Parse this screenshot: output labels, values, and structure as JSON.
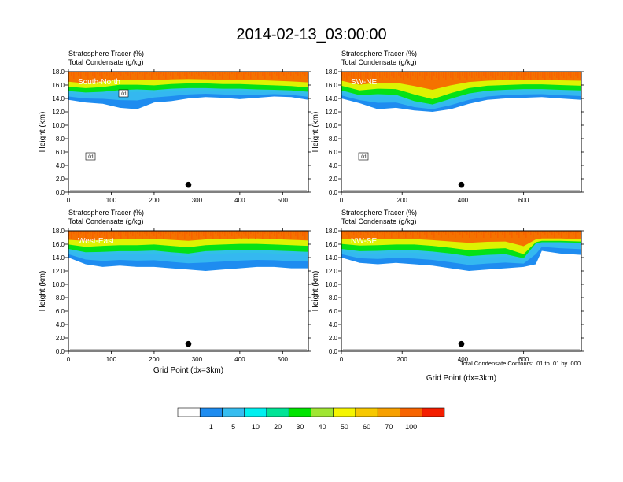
{
  "figure": {
    "title": "2014-02-13_03:00:00",
    "footnote": "Total Condensate Contours: .01 to .01 by .000"
  },
  "chart_data": [
    {
      "type": "heatmap",
      "panel": "South-North",
      "title_lines": [
        "Stratosphere Tracer   (%)",
        "Total Condensate   (g/kg)"
      ],
      "cross_section_label": "South-North",
      "ylabel": "Height (km)",
      "xlabel": "",
      "xlim": [
        0,
        560
      ],
      "ylim": [
        0,
        18
      ],
      "xticks": [
        0,
        100,
        200,
        300,
        400,
        500
      ],
      "yticks": [
        0,
        2,
        4,
        6,
        8,
        10,
        12,
        14,
        16,
        18
      ],
      "marker": {
        "x": 280,
        "y": 1.1
      },
      "contour_labels": [
        ".01",
        ".01"
      ],
      "tracer_levels": {
        "x": [
          0,
          40,
          80,
          120,
          160,
          200,
          240,
          280,
          320,
          360,
          400,
          440,
          480,
          520,
          560
        ],
        "top_of_100": [
          16.9,
          16.6,
          16.9,
          17.1,
          17.1,
          17.1,
          17.2,
          17.2,
          17.1,
          17.1,
          17.1,
          17.1,
          17.0,
          16.9,
          16.8
        ],
        "top_of_70": [
          16.1,
          15.9,
          16.1,
          16.5,
          16.4,
          16.3,
          16.5,
          16.6,
          16.6,
          16.5,
          16.5,
          16.4,
          16.3,
          16.2,
          16.0
        ],
        "top_of_40": [
          15.4,
          15.2,
          15.3,
          15.6,
          15.7,
          15.6,
          15.8,
          15.9,
          15.9,
          15.8,
          15.8,
          15.7,
          15.6,
          15.5,
          15.3
        ],
        "top_of_20": [
          14.8,
          14.6,
          14.7,
          14.9,
          15.0,
          14.9,
          15.1,
          15.2,
          15.2,
          15.1,
          15.1,
          15.0,
          15.0,
          14.9,
          14.7
        ],
        "top_of_1": [
          13.8,
          13.4,
          13.2,
          12.6,
          12.4,
          13.4,
          13.6,
          14.0,
          14.2,
          14.1,
          13.9,
          14.1,
          14.3,
          14.2,
          13.8
        ]
      }
    },
    {
      "type": "heatmap",
      "panel": "SW-NE",
      "title_lines": [
        "Stratosphere Tracer   (%)",
        "Total Condensate   (g/kg)"
      ],
      "cross_section_label": "SW-NE",
      "ylabel": "Height (km)",
      "xlabel": "",
      "xlim": [
        0,
        790
      ],
      "ylim": [
        0,
        18
      ],
      "xticks": [
        0,
        200,
        400,
        600
      ],
      "yticks": [
        0,
        2,
        4,
        6,
        8,
        10,
        12,
        14,
        16,
        18
      ],
      "marker": {
        "x": 395,
        "y": 1.1
      },
      "contour_labels": [
        ".01"
      ],
      "tracer_levels": {
        "x": [
          0,
          60,
          120,
          180,
          240,
          300,
          360,
          420,
          480,
          540,
          600,
          660,
          720,
          790
        ],
        "top_of_100": [
          17.0,
          16.5,
          16.8,
          16.8,
          16.5,
          16.2,
          16.6,
          16.9,
          17.0,
          17.1,
          17.1,
          17.1,
          17.0,
          17.0
        ],
        "top_of_70": [
          16.3,
          15.6,
          15.9,
          15.9,
          15.2,
          14.4,
          15.3,
          16.0,
          16.3,
          16.4,
          16.5,
          16.5,
          16.4,
          16.3
        ],
        "top_of_40": [
          15.5,
          14.8,
          15.0,
          14.9,
          14.0,
          13.4,
          14.3,
          15.1,
          15.5,
          15.6,
          15.7,
          15.7,
          15.6,
          15.5
        ],
        "top_of_20": [
          14.9,
          14.2,
          14.3,
          14.2,
          13.2,
          12.8,
          13.6,
          14.4,
          14.8,
          15.0,
          15.1,
          15.1,
          15.0,
          14.9
        ],
        "top_of_1": [
          14.0,
          13.3,
          12.4,
          12.6,
          12.2,
          12.0,
          12.4,
          13.2,
          13.8,
          14.0,
          14.1,
          14.2,
          14.0,
          13.8
        ]
      }
    },
    {
      "type": "heatmap",
      "panel": "West-East",
      "title_lines": [
        "Stratosphere Tracer   (%)",
        "Total Condensate   (g/kg)"
      ],
      "cross_section_label": "West-East",
      "ylabel": "Height (km)",
      "xlabel": "Grid Point (dx=3km)",
      "xlim": [
        0,
        560
      ],
      "ylim": [
        0,
        18
      ],
      "xticks": [
        0,
        100,
        200,
        300,
        400,
        500
      ],
      "yticks": [
        0,
        2,
        4,
        6,
        8,
        10,
        12,
        14,
        16,
        18
      ],
      "marker": {
        "x": 280,
        "y": 1.1
      },
      "contour_labels": [],
      "tracer_levels": {
        "x": [
          0,
          40,
          80,
          120,
          160,
          200,
          240,
          280,
          320,
          360,
          400,
          440,
          480,
          520,
          560
        ],
        "top_of_100": [
          17.0,
          17.0,
          17.1,
          17.1,
          17.1,
          17.2,
          17.1,
          17.0,
          17.1,
          17.1,
          17.2,
          17.2,
          17.1,
          17.0,
          16.9
        ],
        "top_of_70": [
          16.3,
          16.0,
          16.2,
          16.3,
          16.3,
          16.4,
          16.2,
          16.0,
          16.3,
          16.4,
          16.5,
          16.5,
          16.4,
          16.3,
          16.2
        ],
        "top_of_40": [
          15.6,
          15.2,
          15.3,
          15.4,
          15.4,
          15.5,
          15.3,
          15.1,
          15.4,
          15.5,
          15.6,
          15.6,
          15.5,
          15.4,
          15.3
        ],
        "top_of_20": [
          15.0,
          14.4,
          14.4,
          14.5,
          14.5,
          14.6,
          14.3,
          14.1,
          14.5,
          14.6,
          14.7,
          14.7,
          14.6,
          14.5,
          14.4
        ],
        "top_of_1": [
          14.0,
          13.0,
          12.6,
          12.8,
          12.6,
          12.6,
          12.4,
          12.2,
          12.0,
          12.2,
          12.4,
          12.6,
          12.6,
          12.4,
          12.4
        ]
      }
    },
    {
      "type": "heatmap",
      "panel": "NW-SE",
      "title_lines": [
        "Stratosphere Tracer   (%)",
        "Total Condensate   (g/kg)"
      ],
      "cross_section_label": "NW-SE",
      "ylabel": "Height (km)",
      "xlabel": "Grid Point (dx=3km)",
      "xlim": [
        0,
        790
      ],
      "ylim": [
        0,
        18
      ],
      "xticks": [
        0,
        200,
        400,
        600
      ],
      "yticks": [
        0,
        2,
        4,
        6,
        8,
        10,
        12,
        14,
        16,
        18
      ],
      "marker": {
        "x": 395,
        "y": 1.1
      },
      "contour_labels": [],
      "tracer_levels": {
        "x": [
          0,
          60,
          120,
          180,
          240,
          300,
          360,
          420,
          480,
          540,
          600,
          640,
          660,
          720,
          790
        ],
        "top_of_100": [
          17.1,
          17.0,
          17.1,
          17.1,
          17.1,
          17.0,
          16.9,
          16.8,
          16.9,
          16.9,
          16.6,
          17.0,
          17.1,
          17.1,
          17.0
        ],
        "top_of_70": [
          16.5,
          16.3,
          16.3,
          16.4,
          16.4,
          16.2,
          15.9,
          15.6,
          15.8,
          15.9,
          14.8,
          16.4,
          16.6,
          16.6,
          16.5
        ],
        "top_of_40": [
          15.6,
          15.3,
          15.4,
          15.5,
          15.5,
          15.3,
          15.0,
          14.6,
          14.8,
          14.9,
          14.2,
          16.2,
          16.4,
          16.4,
          16.3
        ],
        "top_of_20": [
          15.0,
          14.6,
          14.6,
          14.7,
          14.7,
          14.5,
          14.2,
          13.8,
          14.0,
          14.1,
          13.6,
          16.0,
          16.2,
          16.2,
          16.1
        ],
        "top_of_1": [
          14.0,
          13.2,
          13.0,
          13.2,
          13.0,
          12.8,
          12.4,
          12.0,
          12.2,
          12.4,
          12.6,
          13.0,
          15.0,
          14.6,
          14.4
        ]
      }
    }
  ],
  "colorbar": {
    "labels": [
      "1",
      "5",
      "10",
      "20",
      "30",
      "40",
      "50",
      "60",
      "70",
      "100"
    ],
    "colors": [
      "#ffffff",
      "#1e8cf0",
      "#36bdf0",
      "#00f0f0",
      "#00e496",
      "#00e400",
      "#a0e632",
      "#f5f500",
      "#f7c800",
      "#f7a000",
      "#f76400",
      "#f41e00"
    ]
  }
}
